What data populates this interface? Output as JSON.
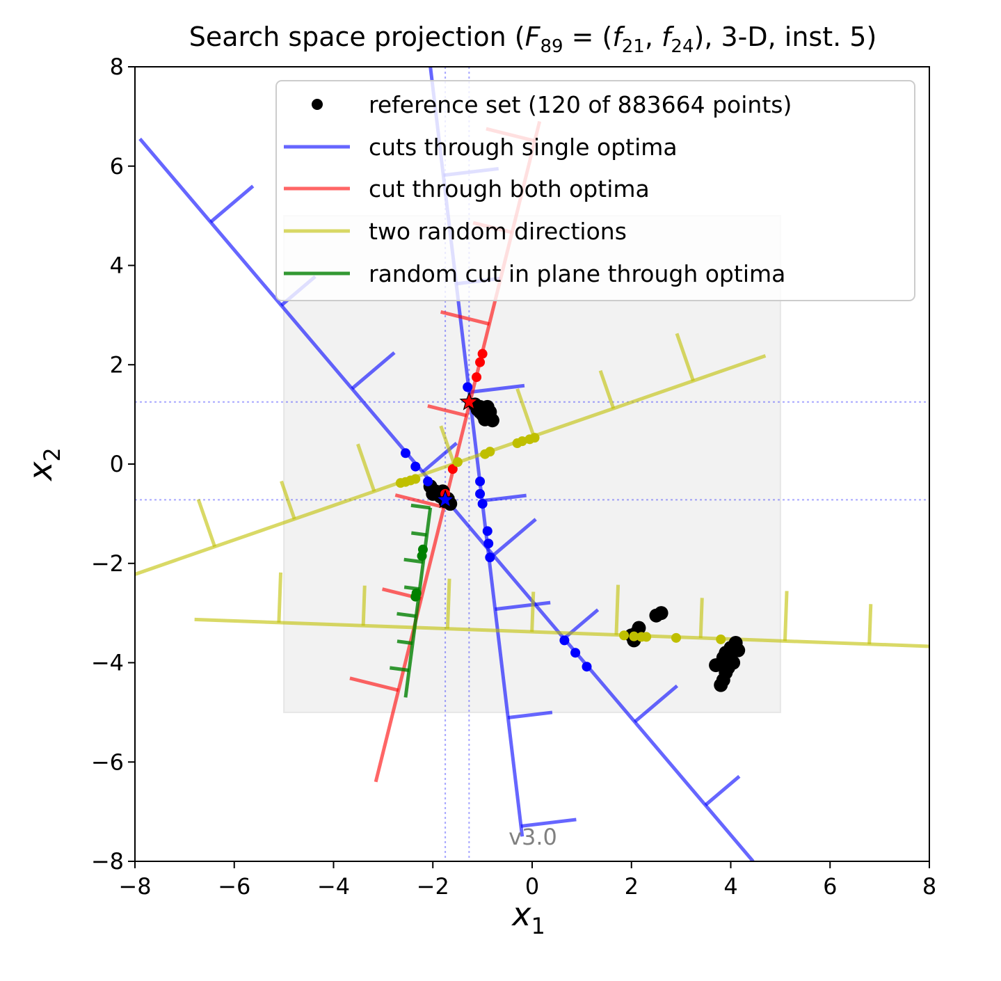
{
  "chart_data": {
    "type": "line",
    "title_main": "Search space projection (",
    "title_F": "F",
    "title_F_sub": "89",
    "title_eq": " = (",
    "title_f1": "f",
    "title_f1_sub": "21",
    "title_comma": ", ",
    "title_f2": "f",
    "title_f2_sub": "24",
    "title_end": "), 3-D, inst. 5)",
    "xlabel": "x",
    "xlabel_sub": "1",
    "ylabel": "x",
    "ylabel_sub": "2",
    "xlim": [
      -8,
      8
    ],
    "ylim": [
      -8,
      8
    ],
    "xticks": [
      -8,
      -6,
      -4,
      -2,
      0,
      2,
      4,
      6,
      8
    ],
    "yticks": [
      -8,
      -6,
      -4,
      -2,
      0,
      2,
      4,
      6,
      8
    ],
    "grid": false,
    "legend_placement": "top-right",
    "watermark": "v3.0",
    "colors": {
      "blue": "#0000ff",
      "red": "#ff0000",
      "yellow": "#bfbf00",
      "green": "#008000",
      "black": "#000000",
      "box": "#f2f2f2"
    },
    "domain_box": {
      "x": [
        -5,
        5
      ],
      "y": [
        -5,
        5
      ]
    },
    "optima": [
      {
        "x": -1.27,
        "y": 1.25
      },
      {
        "x": -1.75,
        "y": -0.72
      }
    ],
    "guide_lines": {
      "x": [
        -1.27,
        -1.75
      ],
      "y": [
        1.25,
        -0.72
      ]
    },
    "series": [
      {
        "name": "reference set (120 of 883664 points)",
        "kind": "scatter",
        "color": "black",
        "points": [
          [
            -1.15,
            1.2
          ],
          [
            -1.05,
            1.15
          ],
          [
            -0.95,
            1.1
          ],
          [
            -1.05,
            1.05
          ],
          [
            -0.9,
            1.0
          ],
          [
            -0.85,
            0.95
          ],
          [
            -0.95,
            0.9
          ],
          [
            -1.0,
            1.0
          ],
          [
            -0.85,
            1.05
          ],
          [
            -0.8,
            0.88
          ],
          [
            -0.9,
            1.15
          ],
          [
            -1.1,
            1.1
          ],
          [
            -2.05,
            -0.45
          ],
          [
            -1.95,
            -0.55
          ],
          [
            -1.85,
            -0.65
          ],
          [
            -1.75,
            -0.75
          ],
          [
            -1.65,
            -0.8
          ],
          [
            -2.0,
            -0.6
          ],
          [
            -1.8,
            -0.55
          ],
          [
            -1.7,
            -0.7
          ],
          [
            2.05,
            -3.55
          ],
          [
            2.1,
            -3.4
          ],
          [
            2.15,
            -3.3
          ],
          [
            2.0,
            -3.45
          ],
          [
            2.5,
            -3.05
          ],
          [
            2.6,
            -3.0
          ],
          [
            3.7,
            -4.05
          ],
          [
            3.8,
            -4.45
          ],
          [
            3.85,
            -4.35
          ],
          [
            3.9,
            -4.2
          ],
          [
            3.95,
            -4.1
          ],
          [
            4.0,
            -3.95
          ],
          [
            4.05,
            -4.0
          ],
          [
            3.9,
            -3.8
          ],
          [
            4.0,
            -3.7
          ],
          [
            4.1,
            -3.6
          ],
          [
            4.15,
            -3.75
          ],
          [
            3.85,
            -3.9
          ]
        ]
      },
      {
        "name": "cuts through single optima",
        "kind": "line",
        "color": "blue",
        "lines": [
          {
            "x": [
              -7.9,
              4.45
            ],
            "y": [
              6.55,
              -8.0
            ]
          },
          {
            "x": [
              -2.05,
              -0.2
            ],
            "y": [
              8.0,
              -7.5
            ]
          }
        ],
        "dots": [
          [
            -1.3,
            1.55
          ],
          [
            -2.55,
            0.22
          ],
          [
            -2.35,
            -0.05
          ],
          [
            -2.1,
            -0.35
          ],
          [
            -1.05,
            -0.35
          ],
          [
            -1.05,
            -0.6
          ],
          [
            -1.0,
            -0.8
          ],
          [
            -0.9,
            -1.35
          ],
          [
            -0.88,
            -1.6
          ],
          [
            -0.85,
            -1.88
          ],
          [
            0.65,
            -3.55
          ],
          [
            0.87,
            -3.8
          ],
          [
            1.1,
            -4.08
          ]
        ]
      },
      {
        "name": "cut through both optima",
        "kind": "line",
        "color": "red",
        "lines": [
          {
            "x": [
              -3.15,
              0.15
            ],
            "y": [
              -6.4,
              6.9
            ]
          }
        ],
        "dots": [
          [
            -1.0,
            2.22
          ],
          [
            -1.05,
            2.05
          ],
          [
            -1.12,
            1.75
          ],
          [
            -1.6,
            -0.1
          ],
          [
            -1.75,
            -0.6
          ]
        ]
      },
      {
        "name": "two random directions",
        "kind": "line",
        "color": "yellow",
        "lines": [
          {
            "x": [
              -8.0,
              4.7
            ],
            "y": [
              -2.22,
              2.18
            ]
          },
          {
            "x": [
              -6.8,
              8.0
            ],
            "y": [
              -3.13,
              -3.67
            ]
          }
        ],
        "dots": [
          [
            -2.65,
            -0.38
          ],
          [
            -2.55,
            -0.36
          ],
          [
            -2.45,
            -0.33
          ],
          [
            -2.35,
            -0.3
          ],
          [
            -1.5,
            0.04
          ],
          [
            -0.95,
            0.2
          ],
          [
            -0.85,
            0.25
          ],
          [
            -0.3,
            0.42
          ],
          [
            -0.2,
            0.46
          ],
          [
            -0.05,
            0.5
          ],
          [
            0.05,
            0.53
          ],
          [
            1.85,
            -3.45
          ],
          [
            2.05,
            -3.47
          ],
          [
            2.2,
            -3.48
          ],
          [
            2.3,
            -3.48
          ],
          [
            2.9,
            -3.5
          ],
          [
            3.8,
            -3.53
          ]
        ]
      },
      {
        "name": "random cut in plane through optima",
        "kind": "line",
        "color": "green",
        "lines": [
          {
            "x": [
              -2.55,
              -2.05
            ],
            "y": [
              -4.7,
              -0.88
            ]
          }
        ],
        "dots": [
          [
            -2.2,
            -1.72
          ],
          [
            -2.22,
            -1.85
          ],
          [
            -2.33,
            -2.6
          ],
          [
            -2.35,
            -2.67
          ]
        ]
      }
    ]
  }
}
